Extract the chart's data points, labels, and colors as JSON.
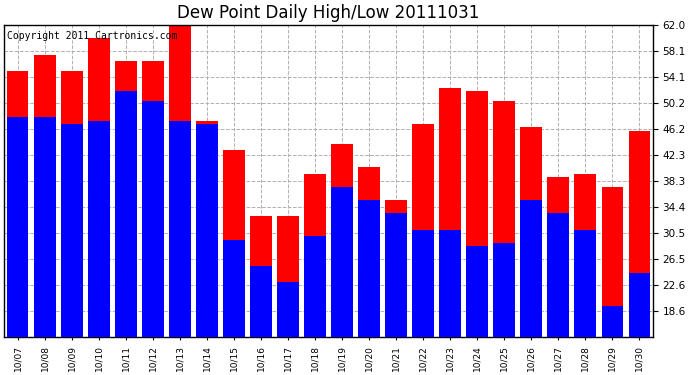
{
  "title": "Dew Point Daily High/Low 20111031",
  "copyright": "Copyright 2011 Cartronics.com",
  "dates": [
    "10/07",
    "10/08",
    "10/09",
    "10/10",
    "10/11",
    "10/12",
    "10/13",
    "10/14",
    "10/15",
    "10/16",
    "10/17",
    "10/18",
    "10/19",
    "10/20",
    "10/21",
    "10/22",
    "10/23",
    "10/24",
    "10/25",
    "10/26",
    "10/27",
    "10/28",
    "10/29",
    "10/30"
  ],
  "highs": [
    55.0,
    57.5,
    55.0,
    60.0,
    56.5,
    56.5,
    62.0,
    47.5,
    43.0,
    33.0,
    33.0,
    39.5,
    44.0,
    40.5,
    35.5,
    47.0,
    52.5,
    52.0,
    50.5,
    46.5,
    39.0,
    39.5,
    37.5,
    46.0
  ],
  "lows": [
    48.0,
    48.0,
    47.0,
    47.5,
    52.0,
    50.5,
    47.5,
    47.0,
    29.5,
    25.5,
    23.0,
    30.0,
    37.5,
    35.5,
    33.5,
    31.0,
    31.0,
    28.5,
    29.0,
    35.5,
    33.5,
    31.0,
    19.5,
    24.5
  ],
  "high_color": "#ff0000",
  "low_color": "#0000ff",
  "bg_color": "#ffffff",
  "grid_color": "#b0b0b0",
  "ylim_min": 14.7,
  "ylim_max": 62.0,
  "yticks": [
    18.6,
    22.6,
    26.5,
    30.5,
    34.4,
    38.3,
    42.3,
    46.2,
    50.2,
    54.1,
    58.1,
    62.0
  ],
  "title_fontsize": 12,
  "copyright_fontsize": 7,
  "bar_width": 0.8,
  "figwidth": 6.9,
  "figheight": 3.75
}
